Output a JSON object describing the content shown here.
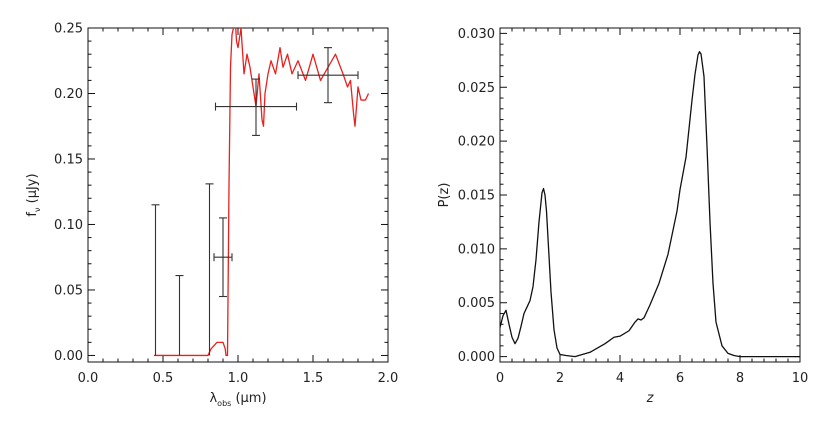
{
  "chart_data": [
    {
      "type": "line",
      "xlabel": "λobs (μm)",
      "xlabel_main": "λ",
      "xlabel_sub": "obs",
      "xlabel_unit": " (μm)",
      "ylabel": "fν (μJy)",
      "ylabel_main": "f",
      "ylabel_sub": "ν",
      "ylabel_unit": " (μJy)",
      "xlim": [
        0.0,
        2.0
      ],
      "ylim": [
        -0.005,
        0.25
      ],
      "xticks": [
        0.0,
        0.5,
        1.0,
        1.5,
        2.0
      ],
      "xtick_labels": [
        "0.0",
        "0.5",
        "1.0",
        "1.5",
        "2.0"
      ],
      "yticks": [
        0.0,
        0.05,
        0.1,
        0.15,
        0.2,
        0.25
      ],
      "ytick_labels": [
        "0.00",
        "0.05",
        "0.10",
        "0.15",
        "0.20",
        "0.25"
      ],
      "grid": false,
      "series": [
        {
          "role": "model spectrum",
          "color": "#e8211e",
          "x": [
            0.44,
            0.5,
            0.6,
            0.7,
            0.8,
            0.82,
            0.86,
            0.9,
            0.915,
            0.92,
            0.93,
            0.94,
            0.95,
            0.96,
            0.97,
            0.98,
            0.99,
            1.0,
            1.02,
            1.04,
            1.06,
            1.08,
            1.1,
            1.12,
            1.14,
            1.16,
            1.17,
            1.18,
            1.2,
            1.22,
            1.25,
            1.28,
            1.3,
            1.33,
            1.36,
            1.4,
            1.45,
            1.5,
            1.55,
            1.6,
            1.65,
            1.7,
            1.73,
            1.75,
            1.77,
            1.78,
            1.8,
            1.82,
            1.85,
            1.87
          ],
          "y": [
            0.0,
            0.0,
            0.0,
            0.0,
            0.0,
            0.005,
            0.01,
            0.01,
            0.005,
            0.0,
            0.0,
            0.13,
            0.22,
            0.245,
            0.25,
            0.26,
            0.24,
            0.235,
            0.25,
            0.215,
            0.23,
            0.22,
            0.205,
            0.19,
            0.215,
            0.18,
            0.175,
            0.2,
            0.215,
            0.225,
            0.215,
            0.235,
            0.22,
            0.23,
            0.215,
            0.225,
            0.21,
            0.23,
            0.21,
            0.22,
            0.23,
            0.215,
            0.205,
            0.21,
            0.185,
            0.175,
            0.205,
            0.195,
            0.195,
            0.2
          ]
        }
      ],
      "errorbars": [
        {
          "x": 0.45,
          "y": 0.0,
          "xerr": 0.0,
          "ylow": 0.0,
          "yhigh": 0.115
        },
        {
          "x": 0.61,
          "y": 0.0,
          "xerr": 0.0,
          "ylow": 0.0,
          "yhigh": 0.061
        },
        {
          "x": 0.81,
          "y": 0.0,
          "xerr": 0.0,
          "ylow": 0.0,
          "yhigh": 0.131
        },
        {
          "x": 0.9,
          "y": 0.075,
          "xerr": 0.06,
          "ylow": 0.045,
          "yhigh": 0.105
        },
        {
          "x": 1.12,
          "y": 0.19,
          "xerr": 0.27,
          "ylow": 0.168,
          "yhigh": 0.211
        },
        {
          "x": 1.6,
          "y": 0.214,
          "xerr": 0.2,
          "ylow": 0.193,
          "yhigh": 0.235
        }
      ]
    },
    {
      "type": "line",
      "xlabel": "z",
      "ylabel": "P(z)",
      "xlim": [
        0,
        10
      ],
      "ylim": [
        -0.0005,
        0.0305
      ],
      "xticks": [
        0,
        2,
        4,
        6,
        8,
        10
      ],
      "xtick_labels": [
        "0",
        "2",
        "4",
        "6",
        "8",
        "10"
      ],
      "yticks": [
        0.0,
        0.005,
        0.01,
        0.015,
        0.02,
        0.025,
        0.03
      ],
      "ytick_labels": [
        "0.000",
        "0.005",
        "0.010",
        "0.015",
        "0.020",
        "0.025",
        "0.030"
      ],
      "grid": false,
      "series": [
        {
          "role": "probability distribution",
          "color": "#111111",
          "x": [
            0.0,
            0.1,
            0.2,
            0.3,
            0.4,
            0.5,
            0.6,
            0.7,
            0.8,
            0.9,
            1.0,
            1.1,
            1.2,
            1.3,
            1.4,
            1.45,
            1.5,
            1.55,
            1.6,
            1.7,
            1.8,
            1.9,
            2.0,
            2.2,
            2.5,
            3.0,
            3.5,
            3.8,
            4.0,
            4.3,
            4.5,
            4.6,
            4.7,
            4.8,
            5.0,
            5.3,
            5.6,
            5.9,
            6.0,
            6.2,
            6.4,
            6.5,
            6.6,
            6.65,
            6.7,
            6.8,
            6.9,
            7.0,
            7.1,
            7.2,
            7.4,
            7.6,
            7.8,
            8.0,
            8.3,
            8.6,
            9.0,
            9.5,
            10.0
          ],
          "y": [
            0.0027,
            0.0038,
            0.0043,
            0.003,
            0.0018,
            0.0012,
            0.0017,
            0.0028,
            0.004,
            0.0046,
            0.0052,
            0.0065,
            0.009,
            0.0125,
            0.0152,
            0.0156,
            0.015,
            0.0135,
            0.011,
            0.006,
            0.0025,
            0.0008,
            0.0002,
            0.0001,
            0.0,
            0.0004,
            0.0012,
            0.0018,
            0.0019,
            0.0024,
            0.0032,
            0.0035,
            0.0034,
            0.0036,
            0.0048,
            0.0068,
            0.0095,
            0.0135,
            0.0155,
            0.0185,
            0.0238,
            0.0262,
            0.028,
            0.0283,
            0.0281,
            0.026,
            0.0195,
            0.0125,
            0.0068,
            0.0032,
            0.001,
            0.0003,
            0.0001,
            0.0,
            0.0,
            0.0,
            0.0,
            0.0,
            0.0
          ]
        }
      ],
      "errorbars": []
    }
  ]
}
